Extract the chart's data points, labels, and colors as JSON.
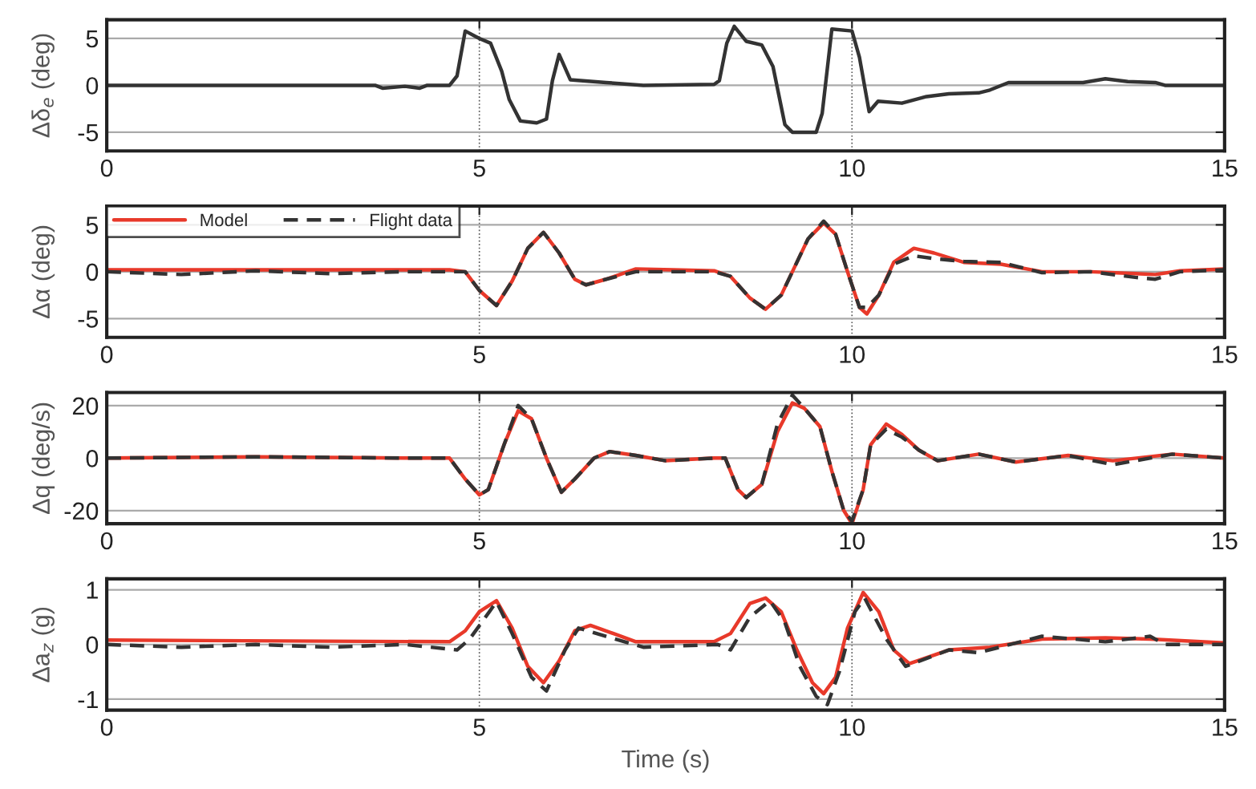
{
  "chart_data": [
    {
      "type": "line",
      "ylabel": "Δδ$_{e}$ (deg)",
      "xlim": [
        0,
        15
      ],
      "xticks": [
        0,
        5,
        10,
        15
      ],
      "ylim": [
        -7,
        7
      ],
      "yticks": [
        -5,
        0,
        5
      ],
      "grid": true,
      "legend": false,
      "series": [
        {
          "color": "#333333",
          "x": [
            0,
            3.6,
            3.7,
            4.0,
            4.2,
            4.3,
            4.6,
            4.7,
            4.81,
            5.0,
            5.15,
            5.3,
            5.4,
            5.55,
            5.77,
            5.9,
            5.98,
            6.07,
            6.22,
            6.7,
            7.2,
            8.15,
            8.22,
            8.32,
            8.42,
            8.58,
            8.79,
            8.94,
            9.1,
            9.2,
            9.52,
            9.6,
            9.73,
            10.0,
            10.1,
            10.23,
            10.35,
            10.67,
            11.0,
            11.3,
            11.7,
            11.85,
            12.1,
            13.1,
            13.4,
            13.7,
            14.07,
            14.2,
            15
          ],
          "values": [
            0,
            0,
            -0.3,
            -0.1,
            -0.3,
            0,
            0,
            1,
            5.8,
            5,
            4.5,
            1.5,
            -1.5,
            -3.8,
            -4.0,
            -3.6,
            0.5,
            3.3,
            0.6,
            0.3,
            0,
            0.1,
            0.5,
            4.5,
            6.3,
            4.7,
            4.3,
            2,
            -4.2,
            -5,
            -5,
            -3,
            6,
            5.8,
            3,
            -2.8,
            -1.7,
            -1.9,
            -1.2,
            -0.9,
            -0.8,
            -0.5,
            0.3,
            0.3,
            0.7,
            0.4,
            0.3,
            0,
            0
          ]
        }
      ]
    },
    {
      "type": "line",
      "ylabel": "Δα (deg)",
      "xlim": [
        0,
        15
      ],
      "xticks": [
        0,
        5,
        10,
        15
      ],
      "ylim": [
        -7,
        7
      ],
      "yticks": [
        -5,
        0,
        5
      ],
      "grid": true,
      "legend": "top left",
      "x": [
        0,
        1,
        2,
        3,
        4,
        4.6,
        4.81,
        5.0,
        5.23,
        5.44,
        5.65,
        5.86,
        6.07,
        6.28,
        6.43,
        6.7,
        7.1,
        7.6,
        8.15,
        8.37,
        8.63,
        8.84,
        9.05,
        9.2,
        9.41,
        9.62,
        9.78,
        9.94,
        10.1,
        10.2,
        10.36,
        10.56,
        10.83,
        11.1,
        11.5,
        12.0,
        12.55,
        13.2,
        13.8,
        14.07,
        14.4,
        15
      ],
      "series": [
        {
          "name": "Model",
          "color": "#e8392a",
          "line_style": "solid",
          "values": [
            0.2,
            0.2,
            0.2,
            0.2,
            0.2,
            0.2,
            0,
            -2,
            -3.6,
            -1,
            2.5,
            4.2,
            2,
            -0.8,
            -1.4,
            -0.8,
            0.3,
            0.2,
            0.1,
            -0.5,
            -2.8,
            -4,
            -2.5,
            0,
            3.5,
            5.2,
            4,
            0,
            -3.8,
            -4.5,
            -2.5,
            1,
            2.5,
            2,
            1.0,
            0.8,
            0,
            0,
            -0.2,
            -0.3,
            0.1,
            0.3
          ]
        },
        {
          "name": "Flight data",
          "color": "#333333",
          "line_style": "dashed",
          "values": [
            0,
            -0.3,
            0.1,
            -0.2,
            0,
            0,
            0,
            -2,
            -3.6,
            -1,
            2.5,
            4.2,
            2,
            -0.8,
            -1.4,
            -0.8,
            0,
            0,
            0,
            -0.5,
            -2.8,
            -4,
            -2.5,
            0,
            3.5,
            5.4,
            4,
            0,
            -3.8,
            -3.8,
            -2.5,
            0.8,
            1.7,
            1.4,
            1.1,
            1.0,
            -0.1,
            0,
            -0.6,
            -0.8,
            0,
            0.2
          ]
        }
      ]
    },
    {
      "type": "line",
      "ylabel": "Δq (deg/s)",
      "xlim": [
        0,
        15
      ],
      "xticks": [
        0,
        5,
        10,
        15
      ],
      "ylim": [
        -25,
        25
      ],
      "yticks": [
        -20,
        0,
        20
      ],
      "grid": true,
      "legend": false,
      "x": [
        0,
        2,
        4,
        4.6,
        4.81,
        5.0,
        5.12,
        5.33,
        5.52,
        5.7,
        5.9,
        6.1,
        6.28,
        6.54,
        6.75,
        7.1,
        7.5,
        8.15,
        8.3,
        8.47,
        8.58,
        8.79,
        9.0,
        9.2,
        9.36,
        9.57,
        9.73,
        9.89,
        10.0,
        10.15,
        10.25,
        10.46,
        10.67,
        10.9,
        11.15,
        11.7,
        12.2,
        12.9,
        13.5,
        14.3,
        15
      ],
      "series": [
        {
          "color": "#e8392a",
          "line_style": "solid",
          "values": [
            0,
            0.5,
            0,
            0,
            -8,
            -14,
            -12,
            5,
            18,
            15,
            0,
            -13,
            -8,
            0,
            2.5,
            1,
            -1,
            0,
            0,
            -12,
            -15,
            -10,
            10,
            21,
            19,
            12,
            -5,
            -20,
            -25,
            -12,
            5,
            13,
            9,
            3,
            -1,
            1.5,
            -1.5,
            1,
            -1,
            1.5,
            0
          ]
        },
        {
          "color": "#333333",
          "line_style": "dashed",
          "values": [
            0,
            0.5,
            0,
            0,
            -8,
            -14,
            -12,
            5,
            20,
            15,
            0,
            -13,
            -8,
            0,
            2.5,
            1,
            -1,
            0,
            0,
            -12,
            -15,
            -10,
            13,
            24,
            19,
            12,
            -5,
            -20,
            -24,
            -12,
            5,
            11,
            8,
            3,
            -1,
            1.5,
            -1.5,
            1,
            -2.5,
            1.5,
            0
          ]
        }
      ]
    },
    {
      "type": "line",
      "ylabel": "Δa$_{z}$ (g)",
      "xlabel": "Time (s)",
      "xlim": [
        0,
        15
      ],
      "xticks": [
        0,
        5,
        10,
        15
      ],
      "ylim": [
        -1.2,
        1.2
      ],
      "yticks": [
        -1,
        0,
        1
      ],
      "grid": true,
      "legend": false,
      "series": [
        {
          "color": "#e8392a",
          "line_style": "solid",
          "x": [
            0,
            4.6,
            4.81,
            5.0,
            5.23,
            5.44,
            5.65,
            5.86,
            6.07,
            6.28,
            6.49,
            6.8,
            7.1,
            8.15,
            8.37,
            8.63,
            8.84,
            9.05,
            9.26,
            9.47,
            9.62,
            9.78,
            9.94,
            10.15,
            10.36,
            10.56,
            10.77,
            11.3,
            11.85,
            12.55,
            13.4,
            14.0,
            15
          ],
          "values": [
            0.08,
            0.05,
            0.25,
            0.6,
            0.8,
            0.3,
            -0.4,
            -0.7,
            -0.3,
            0.25,
            0.35,
            0.2,
            0.05,
            0.05,
            0.2,
            0.75,
            0.85,
            0.6,
            -0.1,
            -0.7,
            -0.9,
            -0.6,
            0.3,
            0.95,
            0.6,
            -0.1,
            -0.35,
            -0.1,
            -0.05,
            0.1,
            0.12,
            0.1,
            0.03
          ]
        },
        {
          "color": "#333333",
          "line_style": "dashed",
          "x": [
            0,
            1,
            2,
            3,
            4,
            4.7,
            4.87,
            5.23,
            5.44,
            5.7,
            5.9,
            6.15,
            6.33,
            6.7,
            7.2,
            8.2,
            8.37,
            8.63,
            8.9,
            9.1,
            9.3,
            9.52,
            9.67,
            9.83,
            10.04,
            10.17,
            10.46,
            10.72,
            11.3,
            11.7,
            12.55,
            13.4,
            14.0,
            14.2,
            15
          ],
          "values": [
            0,
            -0.05,
            0,
            -0.05,
            0,
            -0.1,
            0.1,
            0.78,
            0.2,
            -0.6,
            -0.85,
            -0.1,
            0.3,
            0.15,
            -0.05,
            0,
            -0.1,
            0.5,
            0.8,
            0.4,
            -0.4,
            -0.95,
            -1.1,
            -0.5,
            0.6,
            0.85,
            0.1,
            -0.4,
            -0.1,
            -0.15,
            0.15,
            0.05,
            0.15,
            0,
            0
          ]
        }
      ]
    }
  ]
}
